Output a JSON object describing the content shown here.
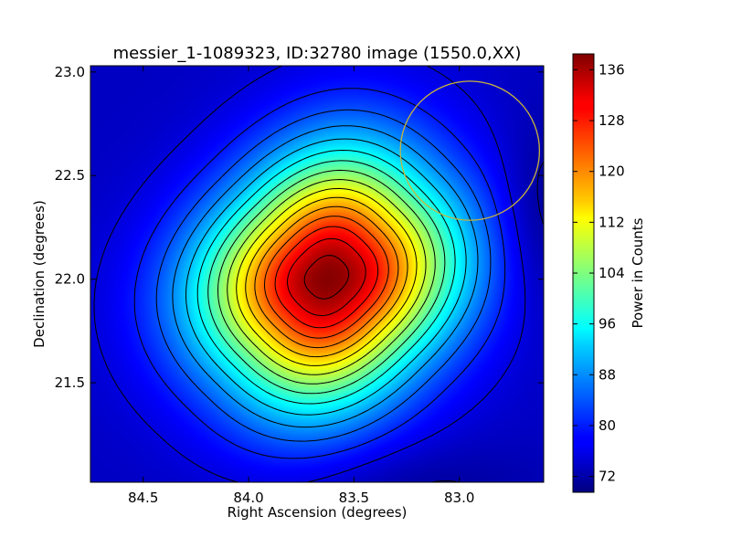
{
  "chart_data": {
    "type": "heatmap",
    "title": "messier_1-1089323, ID:32780 image (1550.0,XX)",
    "xlabel": "Right Ascension (degrees)",
    "ylabel": "Declination (degrees)",
    "xlim": [
      84.75,
      82.6
    ],
    "ylim": [
      21.02,
      23.03
    ],
    "x_ticks": [
      84.5,
      84.0,
      83.5,
      83.0
    ],
    "x_tick_labels": [
      "84.5",
      "84.0",
      "83.5",
      "83.0"
    ],
    "y_ticks": [
      21.5,
      22.0,
      22.5,
      23.0
    ],
    "y_tick_labels": [
      "21.5",
      "22.0",
      "22.5",
      "23.0"
    ],
    "colormap": "jet",
    "colorbar": {
      "label": "Power in Counts",
      "min": 69.5,
      "max": 138.5,
      "ticks": [
        72,
        80,
        88,
        96,
        104,
        112,
        120,
        128,
        136
      ],
      "tick_labels": [
        "72",
        "80",
        "88",
        "96",
        "104",
        "112",
        "120",
        "128",
        "136"
      ]
    },
    "peak": {
      "ra": 83.63,
      "dec": 22.01,
      "value": 138
    },
    "background_level": 74,
    "contour_levels": [
      72,
      76,
      80,
      84,
      88,
      92,
      96,
      100,
      104,
      108,
      112,
      116,
      120,
      124,
      128,
      132,
      136
    ],
    "contour_color": "#000000",
    "marker_circle": {
      "ra": 82.95,
      "dec": 22.62,
      "radius_deg": 0.33,
      "color": "#c8b43c"
    },
    "grid": false
  }
}
